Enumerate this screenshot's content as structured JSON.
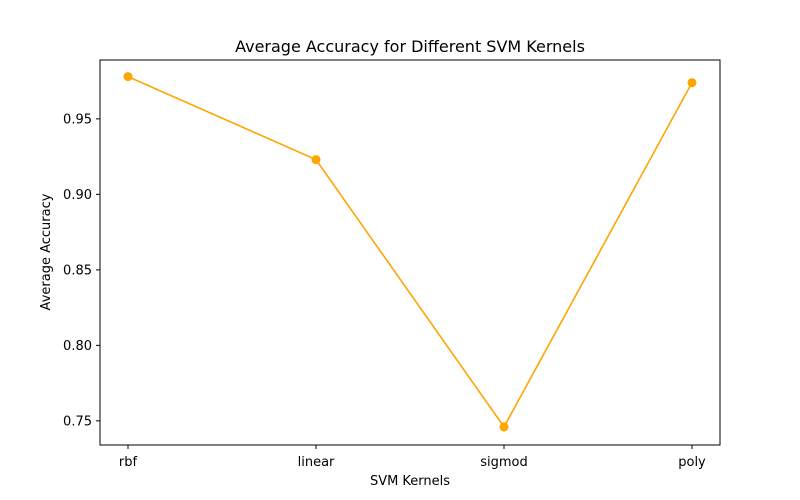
{
  "chart_data": {
    "type": "line",
    "title": "Average Accuracy for Different SVM Kernels",
    "xlabel": "SVM Kernels",
    "ylabel": "Average Accuracy",
    "categories": [
      "rbf",
      "linear",
      "sigmod",
      "poly"
    ],
    "series": [
      {
        "values": [
          0.978,
          0.923,
          0.746,
          0.974
        ],
        "color": "#ffa500",
        "marker": "circle"
      }
    ],
    "ylim": [
      0.734,
      0.989
    ],
    "yticks": [
      0.75,
      0.8,
      0.85,
      0.9,
      0.95
    ],
    "ytick_labels": [
      "0.75",
      "0.80",
      "0.85",
      "0.90",
      "0.95"
    ],
    "grid": false,
    "legend": "none"
  }
}
